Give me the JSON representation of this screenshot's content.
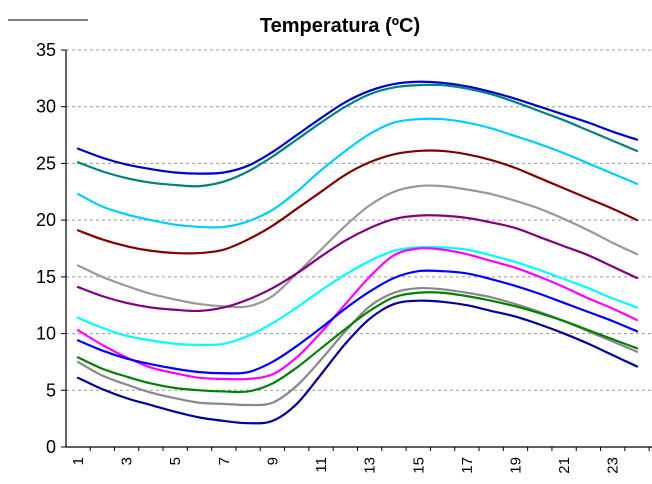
{
  "chart_data": {
    "type": "line",
    "title": "Temperatura (ºC)",
    "xlabel": "",
    "ylabel": "",
    "x": [
      1,
      2,
      3,
      4,
      5,
      6,
      7,
      8,
      9,
      10,
      11,
      12,
      13,
      14,
      15,
      16,
      17,
      18,
      19,
      20,
      21,
      22,
      23,
      24
    ],
    "x_tick_labels": [
      "1",
      "3",
      "5",
      "7",
      "9",
      "11",
      "13",
      "15",
      "17",
      "19",
      "21",
      "23"
    ],
    "ylim": [
      0,
      35
    ],
    "y_ticks": [
      0,
      5,
      10,
      15,
      20,
      25,
      30,
      35
    ],
    "grid": true,
    "legend": "none",
    "series": [
      {
        "color": "#0000cc",
        "values": [
          26.3,
          25.5,
          24.9,
          24.5,
          24.2,
          24.1,
          24.2,
          24.8,
          26.0,
          27.5,
          29.0,
          30.4,
          31.4,
          32.0,
          32.2,
          32.1,
          31.8,
          31.3,
          30.7,
          30.0,
          29.3,
          28.6,
          27.8,
          27.1
        ]
      },
      {
        "color": "#008080",
        "values": [
          25.1,
          24.3,
          23.7,
          23.3,
          23.1,
          23.0,
          23.4,
          24.3,
          25.6,
          27.1,
          28.6,
          30.0,
          31.1,
          31.7,
          31.9,
          31.9,
          31.6,
          31.1,
          30.4,
          29.6,
          28.8,
          27.9,
          27.0,
          26.1
        ]
      },
      {
        "color": "#00ccff",
        "values": [
          22.3,
          21.2,
          20.5,
          20.0,
          19.6,
          19.4,
          19.4,
          19.9,
          20.9,
          22.5,
          24.4,
          26.1,
          27.6,
          28.6,
          28.9,
          28.9,
          28.6,
          28.1,
          27.4,
          26.7,
          25.9,
          25.0,
          24.1,
          23.2
        ]
      },
      {
        "color": "#800000",
        "values": [
          19.1,
          18.3,
          17.7,
          17.3,
          17.1,
          17.1,
          17.4,
          18.3,
          19.5,
          21.0,
          22.5,
          24.0,
          25.1,
          25.8,
          26.1,
          26.1,
          25.8,
          25.3,
          24.6,
          23.7,
          22.8,
          21.9,
          21.0,
          20.0
        ]
      },
      {
        "color": "#999999",
        "values": [
          16.0,
          15.0,
          14.2,
          13.5,
          13.0,
          12.6,
          12.4,
          12.4,
          13.3,
          15.3,
          17.4,
          19.5,
          21.3,
          22.5,
          23.0,
          23.0,
          22.7,
          22.3,
          21.7,
          21.0,
          20.1,
          19.1,
          18.0,
          17.0
        ]
      },
      {
        "color": "#800080",
        "values": [
          14.1,
          13.3,
          12.7,
          12.3,
          12.1,
          12.0,
          12.3,
          13.0,
          14.0,
          15.3,
          16.8,
          18.2,
          19.3,
          20.1,
          20.4,
          20.4,
          20.2,
          19.8,
          19.3,
          18.5,
          17.7,
          16.9,
          15.9,
          14.9
        ]
      },
      {
        "color": "#00ffff",
        "values": [
          11.4,
          10.5,
          9.8,
          9.4,
          9.1,
          9.0,
          9.1,
          9.8,
          10.9,
          12.3,
          13.8,
          15.2,
          16.4,
          17.3,
          17.6,
          17.6,
          17.4,
          16.9,
          16.3,
          15.6,
          14.8,
          14.0,
          13.1,
          12.3
        ]
      },
      {
        "color": "#ff00ff",
        "values": [
          10.3,
          9.0,
          7.9,
          7.0,
          6.5,
          6.1,
          6.0,
          6.0,
          6.4,
          7.9,
          10.1,
          12.6,
          15.0,
          16.9,
          17.5,
          17.4,
          17.0,
          16.4,
          15.8,
          15.0,
          14.1,
          13.1,
          12.2,
          11.2
        ]
      },
      {
        "color": "#0000ff",
        "values": [
          9.4,
          8.5,
          7.8,
          7.3,
          6.9,
          6.6,
          6.5,
          6.6,
          7.5,
          8.9,
          10.5,
          12.2,
          13.7,
          14.9,
          15.5,
          15.5,
          15.3,
          14.8,
          14.2,
          13.5,
          12.7,
          11.9,
          11.1,
          10.2
        ]
      },
      {
        "color": "#888888",
        "values": [
          7.5,
          6.3,
          5.5,
          4.8,
          4.3,
          3.9,
          3.8,
          3.7,
          3.9,
          5.4,
          7.7,
          10.2,
          12.4,
          13.6,
          14.0,
          13.9,
          13.6,
          13.2,
          12.6,
          11.9,
          11.1,
          10.2,
          9.3,
          8.4
        ]
      },
      {
        "color": "#008000",
        "values": [
          7.9,
          6.9,
          6.2,
          5.6,
          5.2,
          5.0,
          4.9,
          4.9,
          5.6,
          7.0,
          8.7,
          10.4,
          12.0,
          13.2,
          13.6,
          13.6,
          13.3,
          12.9,
          12.4,
          11.8,
          11.1,
          10.3,
          9.5,
          8.7
        ]
      },
      {
        "color": "#000099",
        "values": [
          6.1,
          5.1,
          4.3,
          3.7,
          3.1,
          2.6,
          2.3,
          2.1,
          2.3,
          3.8,
          6.4,
          9.1,
          11.3,
          12.6,
          12.9,
          12.8,
          12.5,
          12.0,
          11.5,
          10.8,
          10.0,
          9.1,
          8.1,
          7.1
        ]
      }
    ]
  },
  "header_line": ""
}
